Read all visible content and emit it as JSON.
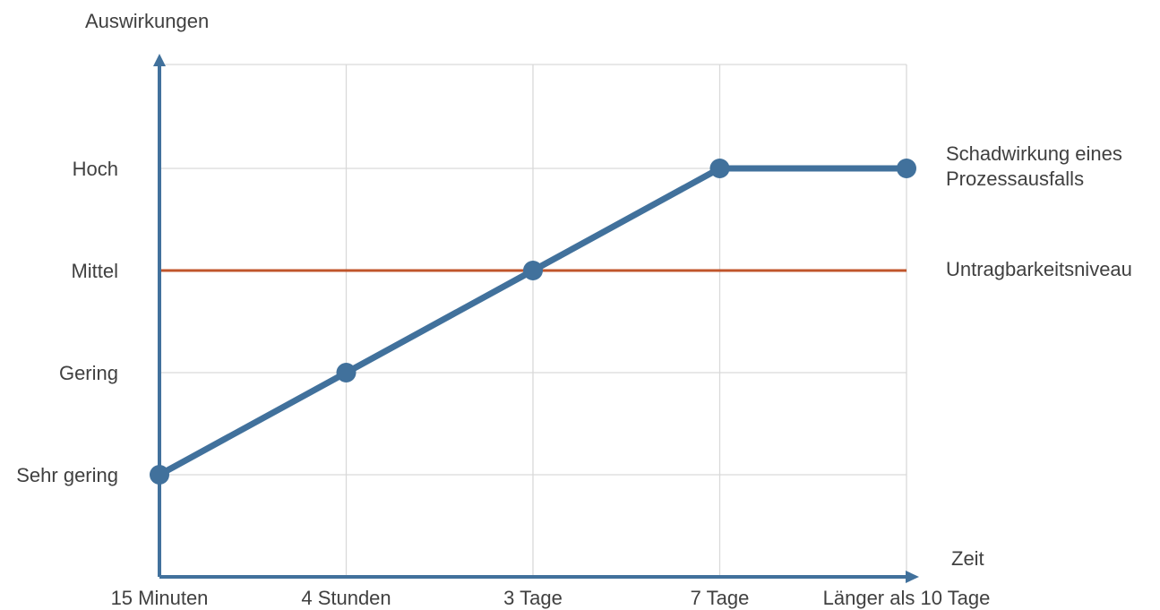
{
  "chart_data": {
    "type": "line",
    "title": "",
    "ylabel": "Auswirkungen",
    "xlabel": "Zeit",
    "categories": [
      "15 Minuten",
      "4 Stunden",
      "3 Tage",
      "7 Tage",
      "Länger als 10 Tage"
    ],
    "y_levels": [
      "Sehr gering",
      "Gering",
      "Mittel",
      "Hoch"
    ],
    "ylim": [
      0,
      4
    ],
    "grid": true,
    "series": [
      {
        "name": "Schadwirkung eines Prozessausfalls",
        "name_lines": [
          "Schadwirkung eines",
          "Prozessausfalls"
        ],
        "values": [
          1,
          2,
          3,
          4,
          4
        ],
        "color": "#41719C"
      }
    ],
    "threshold": {
      "name": "Untragbarkeitsniveau",
      "value": 3,
      "color": "#C0552B"
    },
    "axis_color": "#41719C",
    "grid_color": "#D9D9D9"
  }
}
